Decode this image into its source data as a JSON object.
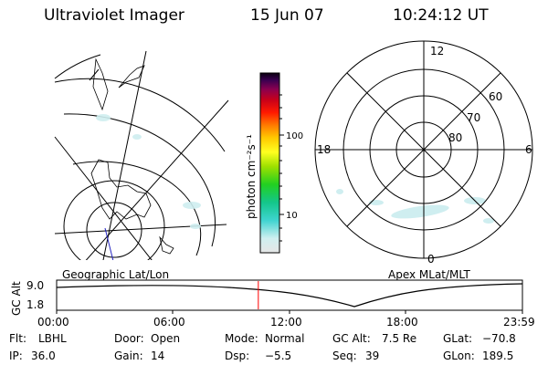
{
  "header": {
    "instrument": "Ultraviolet Imager",
    "date": "15 Jun 07",
    "time": "10:24:12 UT"
  },
  "left_panel": {
    "label": "Geographic Lat/Lon"
  },
  "colorbar": {
    "unit_label": "photon cm⁻²s⁻¹",
    "ticks": [
      "100",
      "10"
    ]
  },
  "right_panel": {
    "label": "Apex MLat/MLT",
    "mlt_labels": [
      "12",
      "18",
      "6",
      "0"
    ],
    "mlat_labels": [
      "60",
      "70",
      "80"
    ]
  },
  "timeline": {
    "ylabel": "GC Alt",
    "y_ticks": [
      "9.0",
      "1.8"
    ],
    "x_ticks": [
      "00:00",
      "06:00",
      "12:00",
      "18:00",
      "23:59"
    ],
    "current_time_fraction": 0.433,
    "marker_color": "#ff0000"
  },
  "info": {
    "filter_label": "Flt:",
    "filter": "LBHL",
    "door_label": "Door:",
    "door": "Open",
    "mode_label": "Mode:",
    "mode": "Normal",
    "gc_alt_label": "GC Alt:",
    "gc_alt": "7.5 Re",
    "glat_label": "GLat:",
    "glat": "−70.8",
    "ip_label": "IP:",
    "ip": "36.0",
    "gain_label": "Gain:",
    "gain": "14",
    "dsp_label": "Dsp:",
    "dsp": "−5.5",
    "seq_label": "Seq:",
    "seq": "39",
    "glon_label": "GLon:",
    "glon": "189.5"
  }
}
